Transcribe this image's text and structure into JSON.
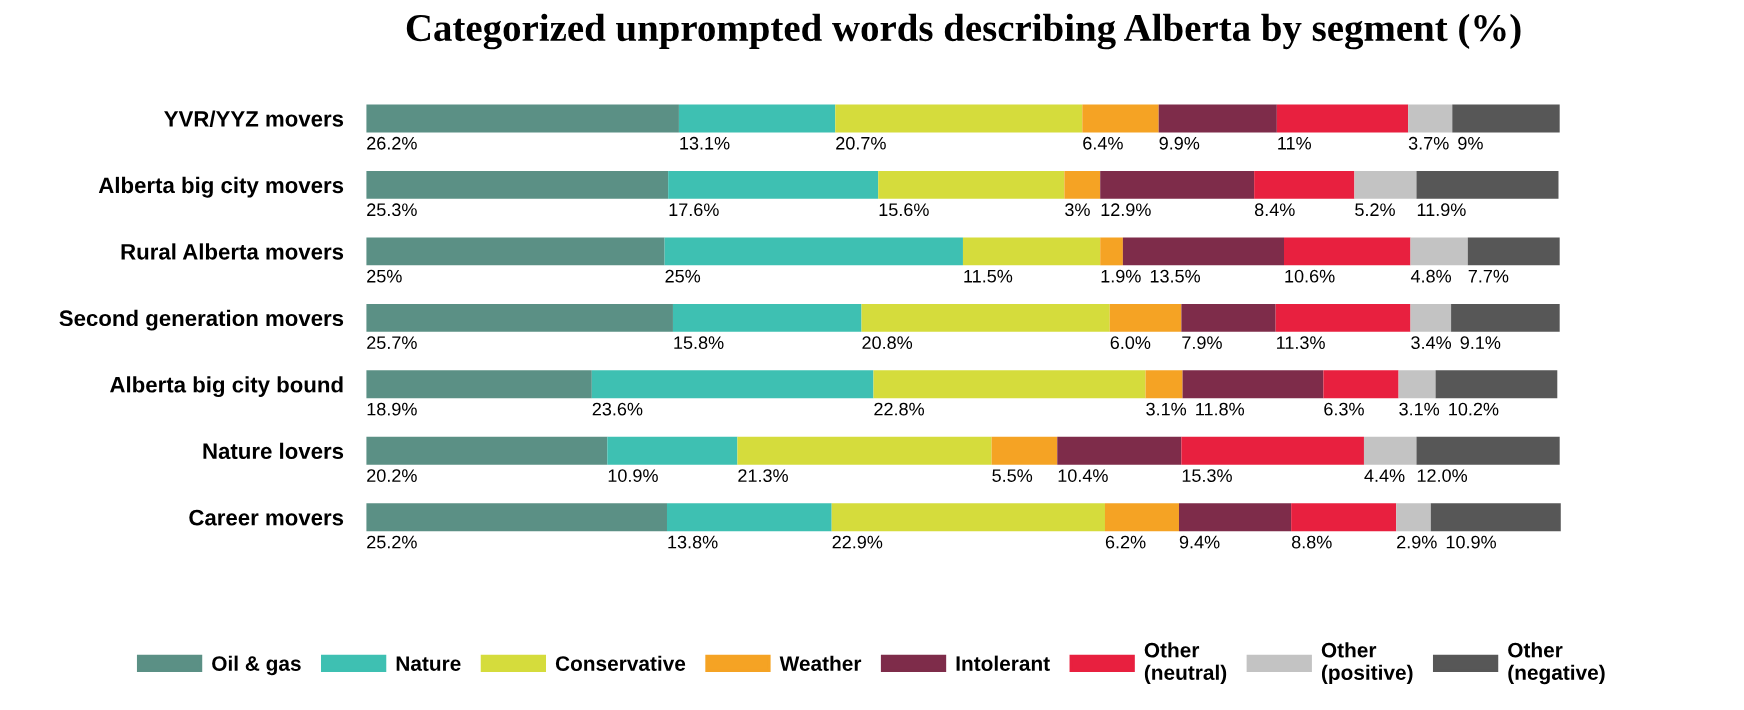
{
  "chart_data": {
    "type": "bar",
    "orientation": "horizontal",
    "stacked": true,
    "title": "Categorized unprompted words describing Alberta by segment (%)",
    "categories": [
      "YVR/YYZ movers",
      "Alberta big city movers",
      "Rural Alberta movers",
      "Second generation movers",
      "Alberta big city bound",
      "Nature lovers",
      "Career movers"
    ],
    "series": [
      {
        "name": "Oil & gas",
        "color": "#5b9085",
        "values": [
          26.2,
          25.3,
          25,
          25.7,
          18.9,
          20.2,
          25.2
        ],
        "value_labels": [
          "26.2%",
          "25.3%",
          "25%",
          "25.7%",
          "18.9%",
          "20.2%",
          "25.2%"
        ]
      },
      {
        "name": "Nature",
        "color": "#3ec0b2",
        "values": [
          13.1,
          17.6,
          25,
          15.8,
          23.6,
          10.9,
          13.8
        ],
        "value_labels": [
          "13.1%",
          "17.6%",
          "25%",
          "15.8%",
          "23.6%",
          "10.9%",
          "13.8%"
        ]
      },
      {
        "name": "Conservative",
        "color": "#d5dc3c",
        "values": [
          20.7,
          15.6,
          11.5,
          20.8,
          22.8,
          21.3,
          22.9
        ],
        "value_labels": [
          "20.7%",
          "15.6%",
          "11.5%",
          "20.8%",
          "22.8%",
          "21.3%",
          "22.9%"
        ]
      },
      {
        "name": "Weather",
        "color": "#f5a324",
        "values": [
          6.4,
          3,
          1.9,
          6.0,
          3.1,
          5.5,
          6.2
        ],
        "value_labels": [
          "6.4%",
          "3%",
          "1.9%",
          "6.0%",
          "3.1%",
          "5.5%",
          "6.2%"
        ]
      },
      {
        "name": "Intolerant",
        "color": "#7e2c4a",
        "values": [
          9.9,
          12.9,
          13.5,
          7.9,
          11.8,
          10.4,
          9.4
        ],
        "value_labels": [
          "9.9%",
          "12.9%",
          "13.5%",
          "7.9%",
          "11.8%",
          "10.4%",
          "9.4%"
        ]
      },
      {
        "name": "Other\n(neutral)",
        "color": "#e8203f",
        "values": [
          11,
          8.4,
          10.6,
          11.3,
          6.3,
          15.3,
          8.8
        ],
        "value_labels": [
          "11%",
          "8.4%",
          "10.6%",
          "11.3%",
          "6.3%",
          "15.3%",
          "8.8%"
        ]
      },
      {
        "name": "Other\n(positive)",
        "color": "#c3c3c3",
        "values": [
          3.7,
          5.2,
          4.8,
          3.4,
          3.1,
          4.4,
          2.9
        ],
        "value_labels": [
          "3.7%",
          "5.2%",
          "4.8%",
          "3.4%",
          "3.1%",
          "4.4%",
          "2.9%"
        ]
      },
      {
        "name": "Other\n(negative)",
        "color": "#575757",
        "values": [
          9,
          11.9,
          7.7,
          9.1,
          10.2,
          12.0,
          10.9
        ],
        "value_labels": [
          "9%",
          "11.9%",
          "7.7%",
          "9.1%",
          "10.2%",
          "12.0%",
          "10.9%"
        ]
      }
    ],
    "legend": "bottom",
    "tick_labels": "y",
    "grid": false
  }
}
